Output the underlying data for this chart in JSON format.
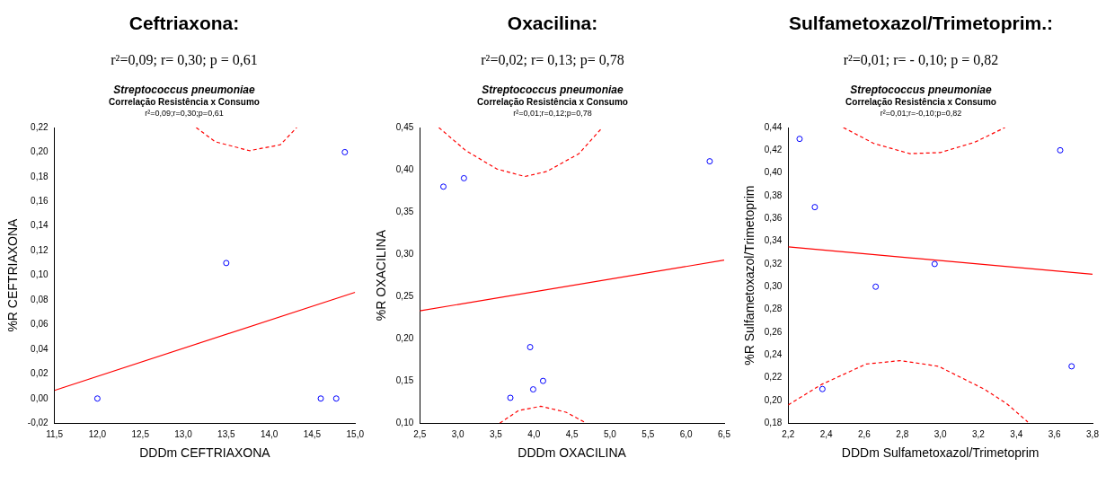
{
  "chart_data": [
    {
      "type": "scatter",
      "title": "Ceftriaxona:",
      "subtitle": "r²=0,09; r= 0,30; p = 0,61",
      "annotations": [
        "Streptococcus pneumoniae",
        "Correlação Resistência x Consumo",
        "r²=0,09;r=0,30;p=0,61"
      ],
      "xlabel": "DDDm CEFTRIAXONA",
      "ylabel": "%R CEFTRIAXONA",
      "grid": false,
      "legend": false,
      "xlim": [
        11.5,
        15.0
      ],
      "xticks": [
        {
          "value": 11.5,
          "label": "11,5"
        },
        {
          "value": 12,
          "label": "12,0"
        },
        {
          "value": 12.5,
          "label": "12,5"
        },
        {
          "value": 13,
          "label": "13,0"
        },
        {
          "value": 13.5,
          "label": "13,5"
        },
        {
          "value": 14,
          "label": "14,0"
        },
        {
          "value": 14.5,
          "label": "14,5"
        },
        {
          "value": 15,
          "label": "15,0"
        }
      ],
      "ylim": [
        -0.02,
        0.22
      ],
      "yticks": [
        {
          "value": -0.02,
          "label": "-0,02"
        },
        {
          "value": 0,
          "label": "0,00"
        },
        {
          "value": 0.02,
          "label": "0,02"
        },
        {
          "value": 0.04,
          "label": "0,04"
        },
        {
          "value": 0.06,
          "label": "0,06"
        },
        {
          "value": 0.08,
          "label": "0,08"
        },
        {
          "value": 0.1,
          "label": "0,10"
        },
        {
          "value": 0.12,
          "label": "0,12"
        },
        {
          "value": 0.14,
          "label": "0,14"
        },
        {
          "value": 0.16,
          "label": "0,16"
        },
        {
          "value": 0.18,
          "label": "0,18"
        },
        {
          "value": 0.2,
          "label": "0,20"
        },
        {
          "value": 0.22,
          "label": "0,22"
        }
      ],
      "series": [
        {
          "type": "scatter",
          "marker": "circle",
          "color": "#0000ff",
          "x": [
            12.0,
            13.5,
            14.6,
            14.78,
            14.88
          ],
          "values": [
            0.0,
            0.11,
            0.0,
            0.0,
            0.2
          ]
        },
        {
          "type": "line",
          "marker": "none",
          "color": "#ff0000",
          "line_style": "solid",
          "x": [
            11.5,
            15.0
          ],
          "values": [
            0.0066,
            0.0862
          ]
        },
        {
          "type": "line",
          "marker": "none",
          "color": "#ff0000",
          "line_style": "dashed",
          "x": [
            13.15,
            13.37,
            13.77,
            14.13,
            14.32
          ],
          "values": [
            0.22,
            0.2085,
            0.2012,
            0.206,
            0.22
          ]
        }
      ]
    },
    {
      "type": "scatter",
      "title": "Oxacilina:",
      "subtitle": "r²=0,02; r= 0,13; p= 0,78",
      "annotations": [
        "Streptococcus pneumoniae",
        "Correlação Resistência x Consumo",
        "r²=0,01;r=0,12;p=0,78"
      ],
      "xlabel": "DDDm OXACILINA",
      "ylabel": "%R OXACILINA",
      "grid": false,
      "legend": false,
      "xlim": [
        2.5,
        6.5
      ],
      "xticks": [
        {
          "value": 2.5,
          "label": "2,5"
        },
        {
          "value": 3,
          "label": "3,0"
        },
        {
          "value": 3.5,
          "label": "3,5"
        },
        {
          "value": 4,
          "label": "4,0"
        },
        {
          "value": 4.5,
          "label": "4,5"
        },
        {
          "value": 5,
          "label": "5,0"
        },
        {
          "value": 5.5,
          "label": "5,5"
        },
        {
          "value": 6,
          "label": "6,0"
        },
        {
          "value": 6.5,
          "label": "6,5"
        }
      ],
      "ylim": [
        0.1,
        0.45
      ],
      "yticks": [
        {
          "value": 0.1,
          "label": "0,10"
        },
        {
          "value": 0.15,
          "label": "0,15"
        },
        {
          "value": 0.2,
          "label": "0,20"
        },
        {
          "value": 0.25,
          "label": "0,25"
        },
        {
          "value": 0.3,
          "label": "0,30"
        },
        {
          "value": 0.35,
          "label": "0,35"
        },
        {
          "value": 0.4,
          "label": "0,40"
        },
        {
          "value": 0.45,
          "label": "0,45"
        }
      ],
      "series": [
        {
          "type": "scatter",
          "marker": "circle",
          "color": "#0000ff",
          "x": [
            2.81,
            3.08,
            6.31,
            3.95,
            3.69,
            3.99,
            4.12
          ],
          "values": [
            0.38,
            0.39,
            0.41,
            0.19,
            0.13,
            0.14,
            0.15
          ]
        },
        {
          "type": "line",
          "marker": "none",
          "color": "#ff0000",
          "line_style": "solid",
          "x": [
            2.5,
            6.5
          ],
          "values": [
            0.233,
            0.293
          ]
        },
        {
          "type": "line",
          "marker": "none",
          "color": "#ff0000",
          "line_style": "dashed",
          "x": [
            2.75,
            3.1,
            3.51,
            3.88,
            4.17,
            4.59,
            4.9
          ],
          "values": [
            0.45,
            0.423,
            0.401,
            0.392,
            0.398,
            0.419,
            0.45
          ]
        },
        {
          "type": "line",
          "marker": "none",
          "color": "#ff0000",
          "line_style": "dashed",
          "x": [
            3.55,
            3.8,
            4.09,
            4.42,
            4.69
          ],
          "values": [
            0.1,
            0.115,
            0.12,
            0.113,
            0.1
          ]
        }
      ]
    },
    {
      "type": "scatter",
      "title": "Sulfametoxazol/Trimetoprim.:",
      "subtitle": "r²=0,01; r= - 0,10; p = 0,82",
      "annotations": [
        "Streptococcus pneumoniae",
        "Correlação Resistência x Consumo",
        "r²=0,01;r=-0,10;p=0,82"
      ],
      "xlabel": "DDDm Sulfametoxazol/Trimetoprim",
      "ylabel": "%R Sulfametoxazol/Trimetoprim",
      "grid": false,
      "legend": false,
      "xlim": [
        2.2,
        3.8
      ],
      "xticks": [
        {
          "value": 2.2,
          "label": "2,2"
        },
        {
          "value": 2.4,
          "label": "2,4"
        },
        {
          "value": 2.6,
          "label": "2,6"
        },
        {
          "value": 2.8,
          "label": "2,8"
        },
        {
          "value": 3,
          "label": "3,0"
        },
        {
          "value": 3.2,
          "label": "3,2"
        },
        {
          "value": 3.4,
          "label": "3,4"
        },
        {
          "value": 3.6,
          "label": "3,6"
        },
        {
          "value": 3.8,
          "label": "3,8"
        }
      ],
      "ylim": [
        0.18,
        0.44
      ],
      "yticks": [
        {
          "value": 0.18,
          "label": "0,18"
        },
        {
          "value": 0.2,
          "label": "0,20"
        },
        {
          "value": 0.22,
          "label": "0,22"
        },
        {
          "value": 0.24,
          "label": "0,24"
        },
        {
          "value": 0.26,
          "label": "0,26"
        },
        {
          "value": 0.28,
          "label": "0,28"
        },
        {
          "value": 0.3,
          "label": "0,30"
        },
        {
          "value": 0.32,
          "label": "0,32"
        },
        {
          "value": 0.34,
          "label": "0,34"
        },
        {
          "value": 0.36,
          "label": "0,36"
        },
        {
          "value": 0.38,
          "label": "0,38"
        },
        {
          "value": 0.4,
          "label": "0,40"
        },
        {
          "value": 0.42,
          "label": "0,42"
        },
        {
          "value": 0.44,
          "label": "0,44"
        }
      ],
      "series": [
        {
          "type": "scatter",
          "marker": "circle",
          "color": "#0000ff",
          "x": [
            2.26,
            2.34,
            2.38,
            2.66,
            2.97,
            3.63,
            3.69
          ],
          "values": [
            0.43,
            0.37,
            0.21,
            0.3,
            0.32,
            0.42,
            0.23
          ]
        },
        {
          "type": "line",
          "marker": "none",
          "color": "#ff0000",
          "line_style": "solid",
          "x": [
            2.2,
            3.8
          ],
          "values": [
            0.335,
            0.311
          ]
        },
        {
          "type": "line",
          "marker": "none",
          "color": "#ff0000",
          "line_style": "dashed",
          "x": [
            2.49,
            2.65,
            2.84,
            3.0,
            3.18,
            3.34
          ],
          "values": [
            0.44,
            0.426,
            0.417,
            0.418,
            0.427,
            0.44
          ]
        },
        {
          "type": "line",
          "marker": "none",
          "color": "#ff0000",
          "line_style": "dashed",
          "x": [
            2.2,
            2.375,
            2.61,
            2.79,
            2.99,
            3.23,
            3.35,
            3.46
          ],
          "values": [
            0.196,
            0.214,
            0.232,
            0.235,
            0.23,
            0.21,
            0.197,
            0.181
          ]
        }
      ]
    }
  ]
}
